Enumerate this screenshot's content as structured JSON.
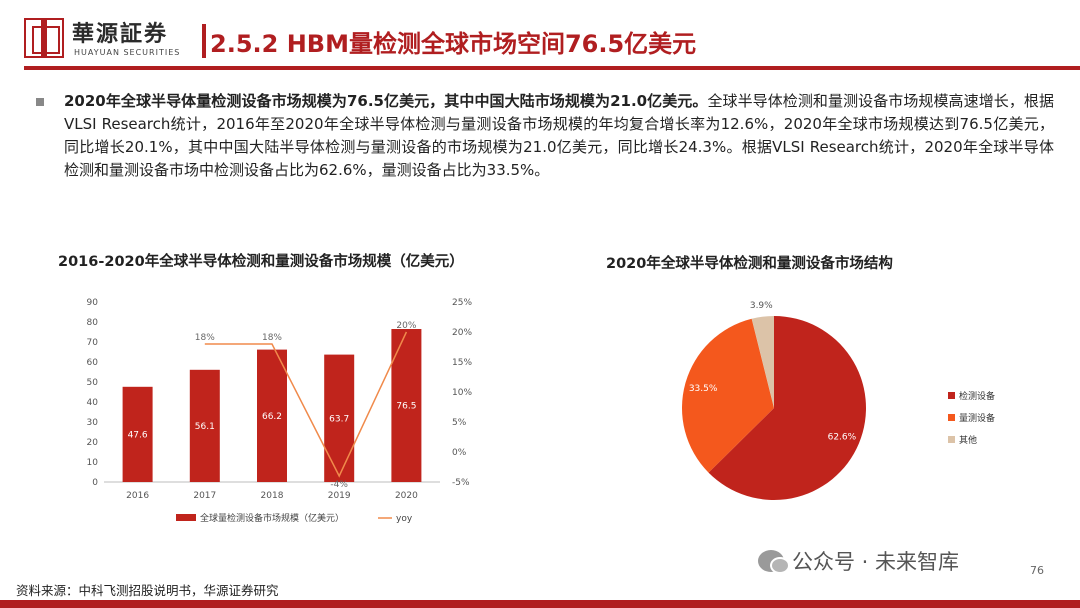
{
  "brand": {
    "name_cn": "華源証券",
    "name_en": "HUAYUAN SECURITIES",
    "color": "#b01e20"
  },
  "page_title": "2.5.2 HBM量检测全球市场空间76.5亿美元",
  "bullet": {
    "lead": "2020年全球半导体量检测设备市场规模为76.5亿美元，其中中国大陆市场规模为21.0亿美元。",
    "body": "全球半导体检测和量测设备市场规模高速增长，根据VLSI Research统计，2016年至2020年全球半导体检测与量测设备市场规模的年均复合增长率为12.6%，2020年全球市场规模达到76.5亿美元，同比增长20.1%，其中中国大陆半导体检测与量测设备的市场规模为21.0亿美元，同比增长24.3%。根据VLSI Research统计，2020年全球半导体检测和量测设备市场中检测设备占比为62.6%，量测设备占比为33.5%。"
  },
  "chart_data": [
    {
      "type": "bar",
      "title": "2016-2020年全球半导体检测和量测设备市场规模（亿美元）",
      "categories": [
        "2016",
        "2017",
        "2018",
        "2019",
        "2020"
      ],
      "series": [
        {
          "name": "全球量检测设备市场规模（亿美元）",
          "type": "bar",
          "axis": "left",
          "color": "#c0241c",
          "values": [
            47.6,
            56.1,
            66.2,
            63.7,
            76.5
          ],
          "labels": [
            "47.6",
            "56.1",
            "66.2",
            "63.7",
            "76.5"
          ]
        },
        {
          "name": "yoy",
          "type": "line",
          "axis": "right",
          "color": "#f08a4b",
          "values": [
            18,
            18,
            -4,
            20
          ],
          "x": [
            "2017",
            "2018",
            "2019",
            "2020"
          ],
          "labels": [
            "18%",
            "18%",
            "-4%",
            "20%"
          ]
        }
      ],
      "ylim": [
        0,
        90
      ],
      "yticks": [
        "0",
        "10",
        "20",
        "30",
        "40",
        "50",
        "60",
        "70",
        "80",
        "90"
      ],
      "y2lim": [
        -5,
        25
      ],
      "y2ticks": [
        "-5%",
        "0%",
        "5%",
        "10%",
        "15%",
        "20%",
        "25%"
      ],
      "grid": false,
      "legend": "bottom"
    },
    {
      "type": "pie",
      "title": "2020年全球半导体检测和量测设备市场结构",
      "labels": [
        "检测设备",
        "量测设备",
        "其他"
      ],
      "values": [
        62.6,
        33.5,
        3.9
      ],
      "value_labels": [
        "62.6%",
        "33.5%",
        "3.9%"
      ],
      "colors": [
        "#c0241c",
        "#f4581d",
        "#dcc3a8"
      ],
      "legend": "right"
    }
  ],
  "source": "资料来源：中科飞测招股说明书，华源证券研究",
  "watermark": {
    "text": "公众号 · 未来智库",
    "page": "76"
  }
}
